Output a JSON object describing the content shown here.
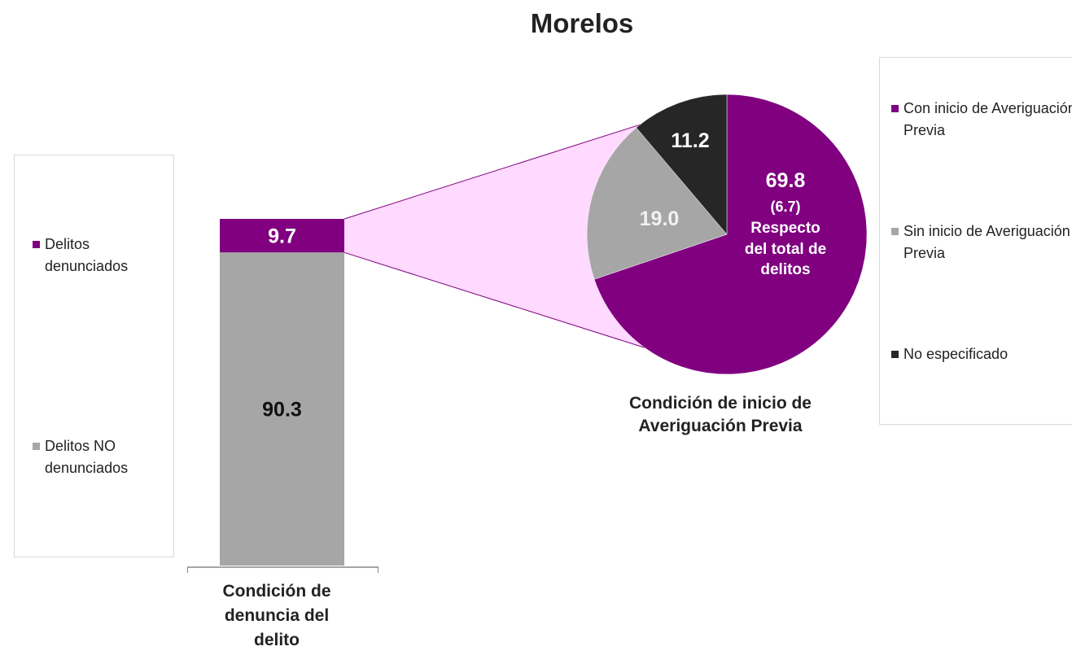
{
  "title": "Morelos",
  "chart_data": [
    {
      "type": "bar",
      "stacked": true,
      "x_label": "Condición de denuncia del delito",
      "categories": [
        null
      ],
      "ylim": [
        0,
        100
      ],
      "series": [
        {
          "name": "Delitos denunciados",
          "color": "#800080",
          "values": [
            9.7
          ]
        },
        {
          "name": "Delitos NO denunciados",
          "color": "#a6a6a6",
          "values": [
            90.3
          ]
        }
      ]
    },
    {
      "type": "pie",
      "title": "Condición de inicio de Averiguación Previa",
      "categories": [
        "Con inicio de Averiguación Previa",
        "Sin inicio de Averiguación Previa",
        "No especificado"
      ],
      "values": [
        69.8,
        19.0,
        11.2
      ],
      "value_labels": [
        "69.8",
        "19.0",
        "11.2"
      ],
      "colors": [
        "#800080",
        "#a6a6a6",
        "#262626"
      ],
      "annotations": [
        "(6.7)",
        "Respecto del total de delitos"
      ]
    }
  ]
}
